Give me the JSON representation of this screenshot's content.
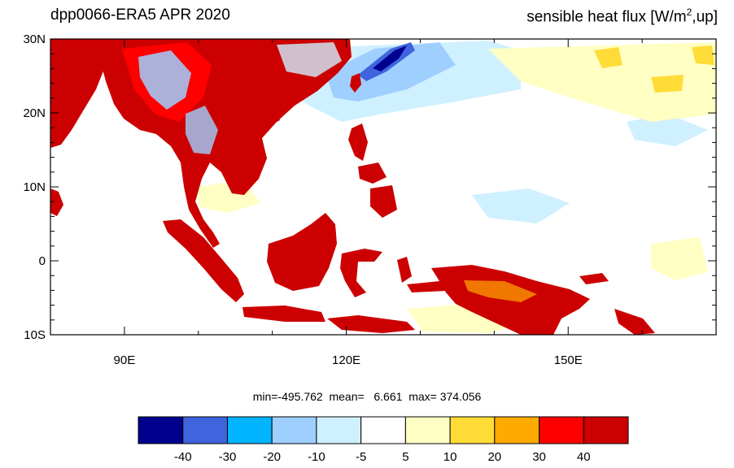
{
  "title": {
    "left": "dpp0066-ERA5  APR 2020",
    "right_main": "sensible heat flux [W/m",
    "right_sup": "2",
    "right_end": ",up]"
  },
  "axes": {
    "lat_ticks": [
      "30N",
      "20N",
      "10N",
      "0",
      "10S"
    ],
    "lon_ticks": [
      "90E",
      "120E",
      "150E"
    ],
    "lat_range": [
      -10,
      30
    ],
    "lon_range": [
      80,
      170
    ]
  },
  "stats": {
    "min_label": "min=",
    "min": "-495.762",
    "mean_label": "mean=",
    "mean": "6.661",
    "max_label": "max=",
    "max": "374.056"
  },
  "colorbar": {
    "colors": [
      "#00008f",
      "#3f64dd",
      "#00b4ff",
      "#9fcfff",
      "#cff0ff",
      "#ffffff",
      "#ffffc3",
      "#ffdc37",
      "#ffaa00",
      "#ff0000",
      "#cc0000"
    ],
    "labels": [
      "-40",
      "-30",
      "-20",
      "-10",
      "-5",
      "5",
      "10",
      "20",
      "30",
      "40"
    ]
  }
}
